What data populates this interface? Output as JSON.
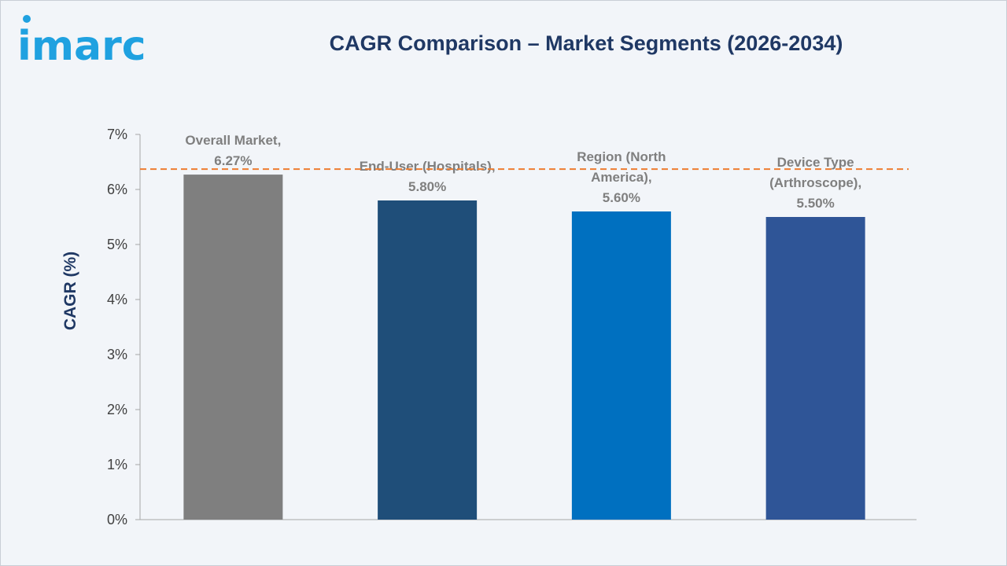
{
  "brand": {
    "logo_text": "imarc"
  },
  "chart_data": {
    "type": "bar",
    "title": "CAGR Comparison – Market Segments (2026-2034)",
    "ylabel": "CAGR (%)",
    "xlabel": "",
    "ylim": [
      0,
      7
    ],
    "yticks": [
      {
        "value": 0,
        "label": "0%"
      },
      {
        "value": 1,
        "label": "1%"
      },
      {
        "value": 2,
        "label": "2%"
      },
      {
        "value": 3,
        "label": "3%"
      },
      {
        "value": 4,
        "label": "4%"
      },
      {
        "value": 5,
        "label": "5%"
      },
      {
        "value": 6,
        "label": "6%"
      },
      {
        "value": 7,
        "label": "7%"
      }
    ],
    "bars": [
      {
        "label_lines": [
          "Overall Market,",
          "6.27%"
        ],
        "value": 6.27,
        "color": "#7f7f7f"
      },
      {
        "label_lines": [
          "End-User (Hospitals),",
          "5.80%"
        ],
        "value": 5.8,
        "color": "#1f4e79"
      },
      {
        "label_lines": [
          "Region (North",
          "America),",
          "5.60%"
        ],
        "value": 5.6,
        "color": "#0070c0"
      },
      {
        "label_lines": [
          "Device Type",
          "(Arthroscope),",
          "5.50%"
        ],
        "value": 5.5,
        "color": "#2f5597"
      }
    ],
    "reference_line": {
      "value": 6.37,
      "color": "#ed7d31",
      "style": "dashed"
    },
    "grid": false,
    "legend": "none"
  }
}
